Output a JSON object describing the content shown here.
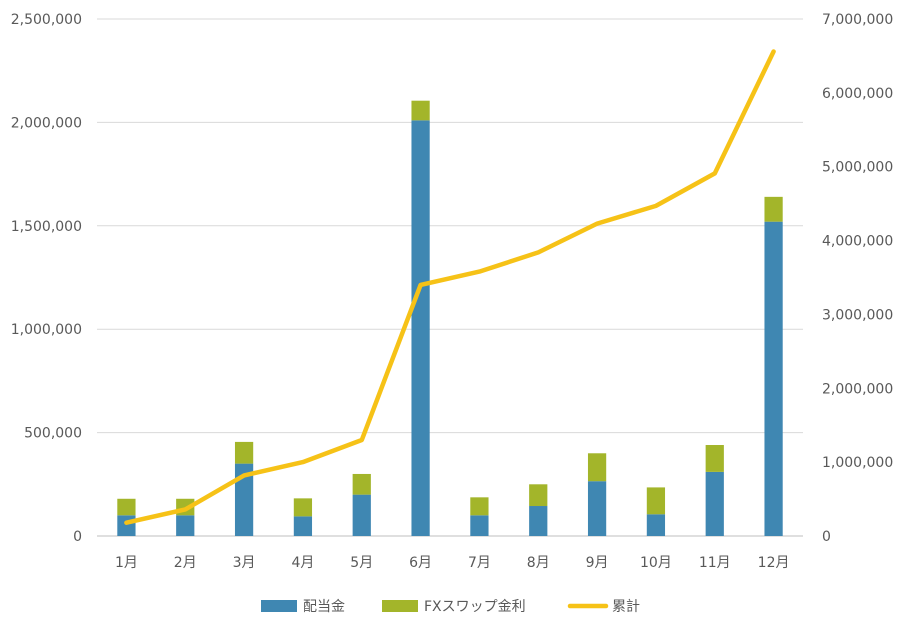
{
  "chart_data": {
    "type": "bar",
    "subtype": "stacked-bar-with-line-secondary-axis",
    "categories": [
      "1月",
      "2月",
      "3月",
      "4月",
      "5月",
      "6月",
      "7月",
      "8月",
      "9月",
      "10月",
      "11月",
      "12月"
    ],
    "series": [
      {
        "name": "配当金",
        "kind": "bar",
        "axis": "left",
        "color": "#3F87B2",
        "values": [
          100000,
          100000,
          350000,
          95000,
          200000,
          2010000,
          100000,
          145000,
          265000,
          105000,
          310000,
          1520000
        ]
      },
      {
        "name": "FXスワップ金利",
        "kind": "bar",
        "axis": "left",
        "color": "#A3B52A",
        "values": [
          80000,
          80000,
          105000,
          87000,
          100000,
          95000,
          87000,
          105000,
          135000,
          130000,
          130000,
          120000
        ]
      },
      {
        "name": "累計",
        "kind": "line",
        "axis": "right",
        "color": "#F6C217",
        "values": [
          180000,
          360000,
          820000,
          1000000,
          1300000,
          3400000,
          3580000,
          3840000,
          4230000,
          4470000,
          4910000,
          6560000
        ]
      }
    ],
    "y_left": {
      "min": 0,
      "max": 2500000,
      "step": 500000,
      "tick_labels": [
        "0",
        "500,000",
        "1,000,000",
        "1,500,000",
        "2,000,000",
        "2,500,000"
      ]
    },
    "y_right": {
      "min": 0,
      "max": 7000000,
      "step": 1000000,
      "tick_labels": [
        "0",
        "1,000,000",
        "2,000,000",
        "3,000,000",
        "4,000,000",
        "5,000,000",
        "6,000,000",
        "7,000,000"
      ]
    },
    "grid": true,
    "legend_position": "bottom",
    "title": "",
    "xlabel": "",
    "ylabel": ""
  }
}
